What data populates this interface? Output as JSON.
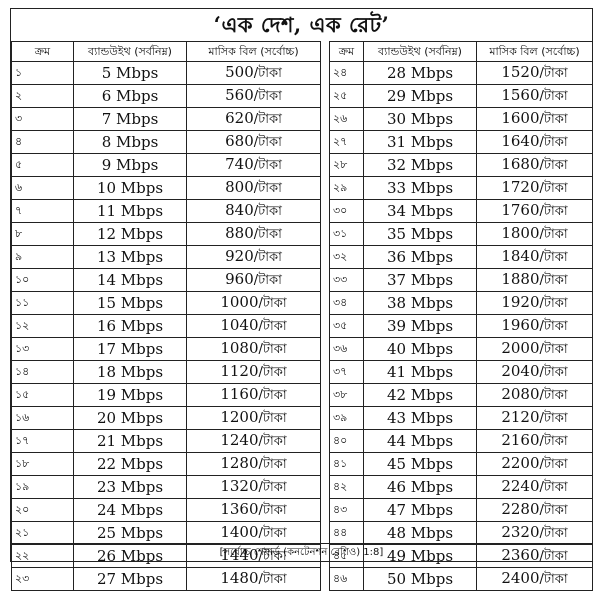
{
  "title": "‘এক দেশ, এক রেট’",
  "columns": {
    "serial": "ক্রম",
    "bandwidth": "ব্যান্ডউইথ (সর্বনিম্ন)",
    "bill": "মাসিক বিল (সর্বোচ্চ)"
  },
  "left_rows": [
    {
      "serial": "১",
      "bandwidth": "5 Mbps",
      "amount": "500",
      "unit": "/টাকা"
    },
    {
      "serial": "২",
      "bandwidth": "6 Mbps",
      "amount": "560",
      "unit": "/টাকা"
    },
    {
      "serial": "৩",
      "bandwidth": "7 Mbps",
      "amount": "620",
      "unit": "/টাকা"
    },
    {
      "serial": "৪",
      "bandwidth": "8 Mbps",
      "amount": "680",
      "unit": "/টাকা"
    },
    {
      "serial": "৫",
      "bandwidth": "9 Mbps",
      "amount": "740",
      "unit": "/টাকা"
    },
    {
      "serial": "৬",
      "bandwidth": "10 Mbps",
      "amount": "800",
      "unit": "/টাকা"
    },
    {
      "serial": "৭",
      "bandwidth": "11 Mbps",
      "amount": "840",
      "unit": "/টাকা"
    },
    {
      "serial": "৮",
      "bandwidth": "12 Mbps",
      "amount": "880",
      "unit": "/টাকা"
    },
    {
      "serial": "৯",
      "bandwidth": "13 Mbps",
      "amount": "920",
      "unit": "/টাকা"
    },
    {
      "serial": "১০",
      "bandwidth": "14 Mbps",
      "amount": "960",
      "unit": "/টাকা"
    },
    {
      "serial": "১১",
      "bandwidth": "15 Mbps",
      "amount": "1000",
      "unit": "/টাকা"
    },
    {
      "serial": "১২",
      "bandwidth": "16 Mbps",
      "amount": "1040",
      "unit": "/টাকা"
    },
    {
      "serial": "১৩",
      "bandwidth": "17 Mbps",
      "amount": "1080",
      "unit": "/টাকা"
    },
    {
      "serial": "১৪",
      "bandwidth": "18 Mbps",
      "amount": "1120",
      "unit": "/টাকা"
    },
    {
      "serial": "১৫",
      "bandwidth": "19 Mbps",
      "amount": "1160",
      "unit": "/টাকা"
    },
    {
      "serial": "১৬",
      "bandwidth": "20 Mbps",
      "amount": "1200",
      "unit": "/টাকা"
    },
    {
      "serial": "১৭",
      "bandwidth": "21 Mbps",
      "amount": "1240",
      "unit": "/টাকা"
    },
    {
      "serial": "১৮",
      "bandwidth": "22 Mbps",
      "amount": "1280",
      "unit": "/টাকা"
    },
    {
      "serial": "১৯",
      "bandwidth": "23 Mbps",
      "amount": "1320",
      "unit": "/টাকা"
    },
    {
      "serial": "২০",
      "bandwidth": "24 Mbps",
      "amount": "1360",
      "unit": "/টাকা"
    },
    {
      "serial": "২১",
      "bandwidth": "25 Mbps",
      "amount": "1400",
      "unit": "/টাকা"
    },
    {
      "serial": "২২",
      "bandwidth": "26 Mbps",
      "amount": "1440",
      "unit": "/টাকা"
    },
    {
      "serial": "২৩",
      "bandwidth": "27 Mbps",
      "amount": "1480",
      "unit": "/টাকা"
    }
  ],
  "right_rows": [
    {
      "serial": "২৪",
      "bandwidth": "28 Mbps",
      "amount": "1520",
      "unit": "/টাকা"
    },
    {
      "serial": "২৫",
      "bandwidth": "29 Mbps",
      "amount": "1560",
      "unit": "/টাকা"
    },
    {
      "serial": "২৬",
      "bandwidth": "30 Mbps",
      "amount": "1600",
      "unit": "/টাকা"
    },
    {
      "serial": "২৭",
      "bandwidth": "31 Mbps",
      "amount": "1640",
      "unit": "/টাকা"
    },
    {
      "serial": "২৮",
      "bandwidth": "32 Mbps",
      "amount": "1680",
      "unit": "/টাকা"
    },
    {
      "serial": "২৯",
      "bandwidth": "33 Mbps",
      "amount": "1720",
      "unit": "/টাকা"
    },
    {
      "serial": "৩০",
      "bandwidth": "34 Mbps",
      "amount": "1760",
      "unit": "/টাকা"
    },
    {
      "serial": "৩১",
      "bandwidth": "35 Mbps",
      "amount": "1800",
      "unit": "/টাকা"
    },
    {
      "serial": "৩২",
      "bandwidth": "36 Mbps",
      "amount": "1840",
      "unit": "/টাকা"
    },
    {
      "serial": "৩৩",
      "bandwidth": "37 Mbps",
      "amount": "1880",
      "unit": "/টাকা"
    },
    {
      "serial": "৩৪",
      "bandwidth": "38 Mbps",
      "amount": "1920",
      "unit": "/টাকা"
    },
    {
      "serial": "৩৫",
      "bandwidth": "39 Mbps",
      "amount": "1960",
      "unit": "/টাকা"
    },
    {
      "serial": "৩৬",
      "bandwidth": "40 Mbps",
      "amount": "2000",
      "unit": "/টাকা"
    },
    {
      "serial": "৩৭",
      "bandwidth": "41 Mbps",
      "amount": "2040",
      "unit": "/টাকা"
    },
    {
      "serial": "৩৮",
      "bandwidth": "42 Mbps",
      "amount": "2080",
      "unit": "/টাকা"
    },
    {
      "serial": "৩৯",
      "bandwidth": "43 Mbps",
      "amount": "2120",
      "unit": "/টাকা"
    },
    {
      "serial": "৪০",
      "bandwidth": "44 Mbps",
      "amount": "2160",
      "unit": "/টাকা"
    },
    {
      "serial": "৪১",
      "bandwidth": "45 Mbps",
      "amount": "2200",
      "unit": "/টাকা"
    },
    {
      "serial": "৪২",
      "bandwidth": "46 Mbps",
      "amount": "2240",
      "unit": "/টাকা"
    },
    {
      "serial": "৪৩",
      "bandwidth": "47 Mbps",
      "amount": "2280",
      "unit": "/টাকা"
    },
    {
      "serial": "৪৪",
      "bandwidth": "48 Mbps",
      "amount": "2320",
      "unit": "/টাকা"
    },
    {
      "serial": "৪৫",
      "bandwidth": "49 Mbps",
      "amount": "2360",
      "unit": "/টাকা"
    },
    {
      "serial": "৪৬",
      "bandwidth": "50 Mbps",
      "amount": "2400",
      "unit": "/টাকা"
    }
  ],
  "footnote": "[সর্বোচ্চ শেয়ার্ড (কনটেনশন রেশিও) 1:8]"
}
